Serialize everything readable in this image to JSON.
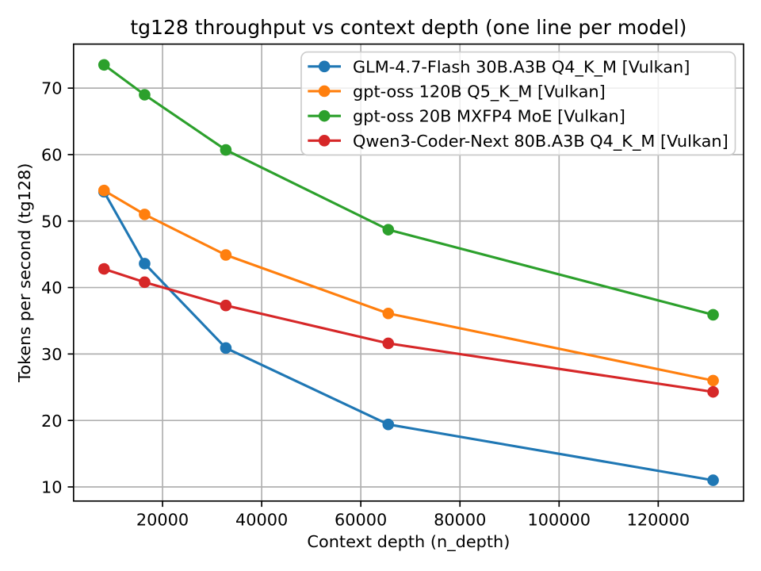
{
  "figure": {
    "background": "#ffffff"
  },
  "chart_data": {
    "type": "line",
    "title": "tg128 throughput vs context depth (one line per model)",
    "xlabel": "Context depth (n_depth)",
    "ylabel": "Tokens per second (tg128)",
    "x": [
      8192,
      16384,
      32768,
      65536,
      131072
    ],
    "series": [
      {
        "name": "GLM-4.7-Flash 30B.A3B Q4_K_M [Vulkan]",
        "color": "#1f77b4",
        "values": [
          54.4,
          43.6,
          30.9,
          19.4,
          11.0
        ]
      },
      {
        "name": "gpt-oss 120B Q5_K_M [Vulkan]",
        "color": "#ff7f0e",
        "values": [
          54.6,
          51.0,
          44.9,
          36.1,
          26.0
        ]
      },
      {
        "name": "gpt-oss 20B MXFP4 MoE [Vulkan]",
        "color": "#2ca02c",
        "values": [
          73.5,
          69.0,
          60.7,
          48.7,
          35.9
        ]
      },
      {
        "name": "Qwen3-Coder-Next 80B.A3B Q4_K_M [Vulkan]",
        "color": "#d62728",
        "values": [
          42.8,
          40.8,
          37.3,
          31.6,
          24.3
        ]
      }
    ],
    "xlim": [
      2048,
      137216
    ],
    "ylim": [
      7.875,
      76.625
    ],
    "xticks": {
      "values": [
        20000,
        40000,
        60000,
        80000,
        100000,
        120000
      ],
      "labels": [
        "20000",
        "40000",
        "60000",
        "80000",
        "100000",
        "120000"
      ]
    },
    "yticks": {
      "values": [
        10,
        20,
        30,
        40,
        50,
        60,
        70
      ],
      "labels": [
        "10",
        "20",
        "30",
        "40",
        "50",
        "60",
        "70"
      ]
    },
    "grid": true,
    "legend": {
      "position": "upper right"
    },
    "colors": {
      "grid": "#b0b0b0",
      "spine": "#000000",
      "text": "#000000",
      "marker_and_line": "series colors",
      "legend_edge": "#cccccc",
      "legend_face": "#ffffff"
    }
  }
}
